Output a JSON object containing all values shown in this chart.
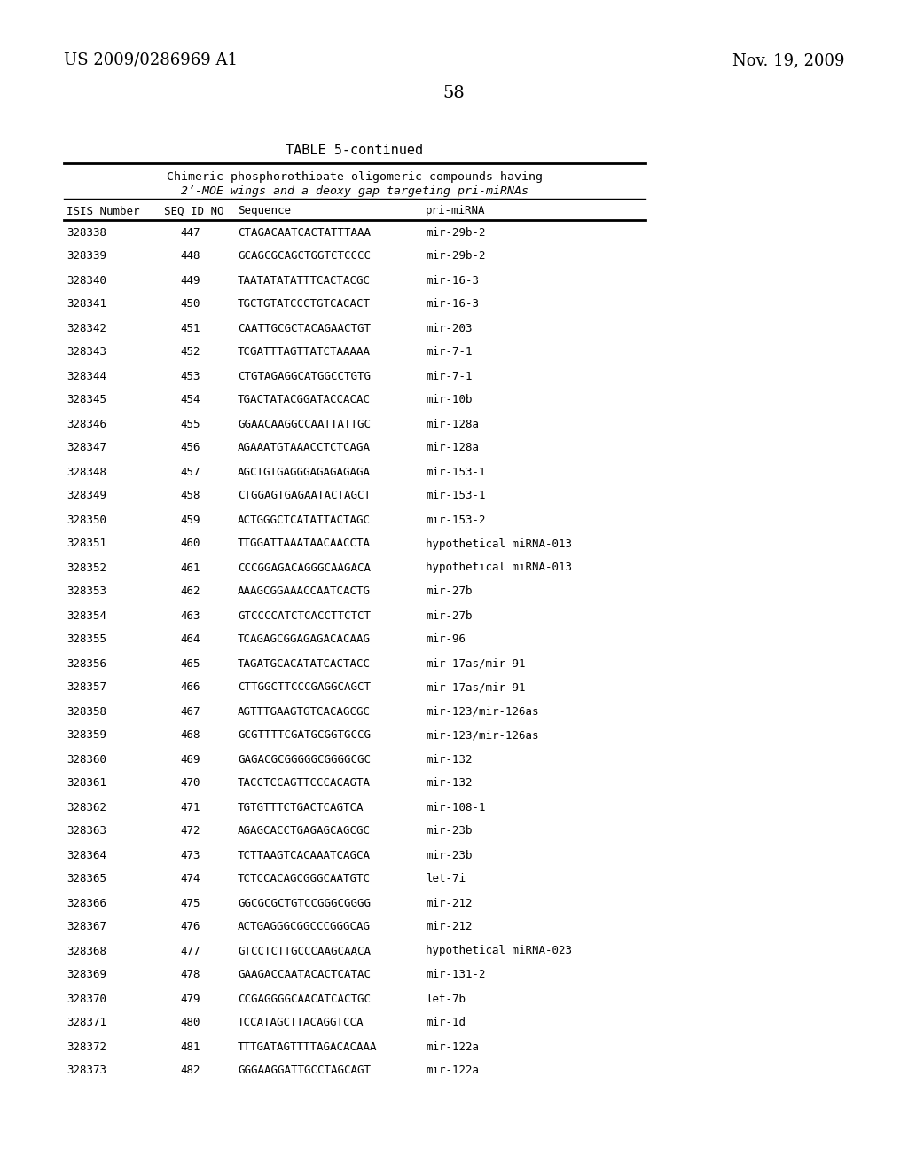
{
  "header_left": "US 2009/0286969 A1",
  "header_right": "Nov. 19, 2009",
  "page_number": "58",
  "table_title": "TABLE 5-continued",
  "table_subtitle1": "Chimeric phosphorothioate oligomeric compounds having",
  "table_subtitle2": "2’-MOE wings and a deoxy gap targeting pri-miRNAs",
  "col_header_isis": "ISIS Number",
  "col_header_seq": "SEQ ID NO",
  "col_header_sequence": "Sequence",
  "col_header_pri": "pri-miRNA",
  "rows": [
    [
      "328338",
      "447",
      "CTAGACAATCACTATTTAAA",
      "mir-29b-2"
    ],
    [
      "328339",
      "448",
      "GCAGCGCAGCTGGTCTCCCC",
      "mir-29b-2"
    ],
    [
      "328340",
      "449",
      "TAATATATATTTCACTACGC",
      "mir-16-3"
    ],
    [
      "328341",
      "450",
      "TGCTGTATCCCTGTCACACT",
      "mir-16-3"
    ],
    [
      "328342",
      "451",
      "CAATTGCGCTACAGAACTGT",
      "mir-203"
    ],
    [
      "328343",
      "452",
      "TCGATTTAGTTATCTAAAAA",
      "mir-7-1"
    ],
    [
      "328344",
      "453",
      "CTGTAGAGGCATGGCCTGTG",
      "mir-7-1"
    ],
    [
      "328345",
      "454",
      "TGACTATACGGATACCACAC",
      "mir-10b"
    ],
    [
      "328346",
      "455",
      "GGAACAAGGCCAATTATTGC",
      "mir-128a"
    ],
    [
      "328347",
      "456",
      "AGAAATGTAAACCTCTCAGA",
      "mir-128a"
    ],
    [
      "328348",
      "457",
      "AGCTGTGAGGGAGAGAGAGA",
      "mir-153-1"
    ],
    [
      "328349",
      "458",
      "CTGGAGTGAGAATACTAGCT",
      "mir-153-1"
    ],
    [
      "328350",
      "459",
      "ACTGGGCTCATATTACTAGC",
      "mir-153-2"
    ],
    [
      "328351",
      "460",
      "TTGGATTAAATAACAACCTA",
      "hypothetical miRNA-013"
    ],
    [
      "328352",
      "461",
      "CCCGGAGACAGGGCAAGACA",
      "hypothetical miRNA-013"
    ],
    [
      "328353",
      "462",
      "AAAGCGGAAACCAATCACTG",
      "mir-27b"
    ],
    [
      "328354",
      "463",
      "GTCCCCATCTCACCTTCTCT",
      "mir-27b"
    ],
    [
      "328355",
      "464",
      "TCAGAGCGGAGAGACACAAG",
      "mir-96"
    ],
    [
      "328356",
      "465",
      "TAGATGCACATATCACTACC",
      "mir-17as/mir-91"
    ],
    [
      "328357",
      "466",
      "CTTGGCTTCCCGAGGCAGCT",
      "mir-17as/mir-91"
    ],
    [
      "328358",
      "467",
      "AGTTTGAAGTGTCACAGCGC",
      "mir-123/mir-126as"
    ],
    [
      "328359",
      "468",
      "GCGTTTTCGATGCGGTGCCG",
      "mir-123/mir-126as"
    ],
    [
      "328360",
      "469",
      "GAGACGCGGGGGCGGGGCGC",
      "mir-132"
    ],
    [
      "328361",
      "470",
      "TACCTCCAGTTCCCACAGTA",
      "mir-132"
    ],
    [
      "328362",
      "471",
      "TGTGTTTCTGACTCAGTCA",
      "mir-108-1"
    ],
    [
      "328363",
      "472",
      "AGAGCACCTGAGAGCAGCGC",
      "mir-23b"
    ],
    [
      "328364",
      "473",
      "TCTTAAGTCACAAATCAGCA",
      "mir-23b"
    ],
    [
      "328365",
      "474",
      "TCTCCACAGCGGGCAATGTC",
      "let-7i"
    ],
    [
      "328366",
      "475",
      "GGCGCGCTGTCCGGGCGGGG",
      "mir-212"
    ],
    [
      "328367",
      "476",
      "ACTGAGGGCGGCCCGGGCAG",
      "mir-212"
    ],
    [
      "328368",
      "477",
      "GTCCTCTTGCCCAAGCAACA",
      "hypothetical miRNA-023"
    ],
    [
      "328369",
      "478",
      "GAAGACCAATACACTCATAC",
      "mir-131-2"
    ],
    [
      "328370",
      "479",
      "CCGAGGGGCAACATCACTGC",
      "let-7b"
    ],
    [
      "328371",
      "480",
      "TCCATAGCTTACAGGTCCA",
      "mir-1d"
    ],
    [
      "328372",
      "481",
      "TTTGATAGTTTTAGACACAAA",
      "mir-122a"
    ],
    [
      "328373",
      "482",
      "GGGAAGGATTGCCTAGCAGT",
      "mir-122a"
    ]
  ],
  "bg_color": "#ffffff",
  "text_color": "#000000"
}
